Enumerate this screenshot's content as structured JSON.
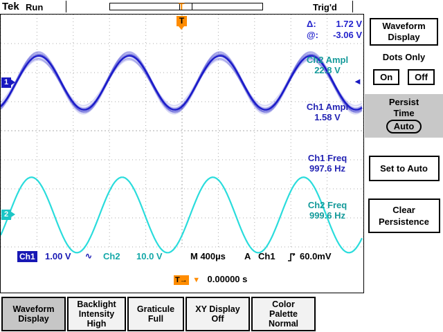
{
  "header": {
    "logo": "Tek",
    "acq_status": "Run",
    "trig_status": "Trig'd",
    "trigger_marker": "T"
  },
  "display": {
    "trigger_top_marker": "T",
    "ch1_marker": "1",
    "ch2_marker": "2",
    "trigger_level_marker": "◄"
  },
  "readouts": {
    "delta_label": "Δ:",
    "delta_value": "1.72 V",
    "at_label": "@:",
    "at_value": "-3.06 V",
    "ch2_ampl_label": "Ch2 Ampl",
    "ch2_ampl_value": "22.8 V",
    "ch1_ampl_label": "Ch1 Ampl",
    "ch1_ampl_value": "1.58 V",
    "ch1_freq_label": "Ch1 Freq",
    "ch1_freq_value": "997.6 Hz",
    "ch2_freq_label": "Ch2 Freq",
    "ch2_freq_value": "999.6 Hz"
  },
  "status_bar": {
    "ch1_label": "Ch1",
    "ch1_scale": "1.00 V",
    "ch1_coupling": "∿",
    "ch2_label": "Ch2",
    "ch2_scale": "10.0 V",
    "timebase": "M 400µs",
    "trig_mode": "A",
    "trig_source": "Ch1",
    "trig_level": "60.0mV",
    "trig_marker": "T→",
    "trig_arrow": "▼",
    "trig_position": "0.00000 s"
  },
  "side_menu": {
    "title_lines": [
      "Waveform",
      "Display"
    ],
    "dots_only_label": "Dots Only",
    "on_label": "On",
    "off_label": "Off",
    "persist_lines": [
      "Persist",
      "Time"
    ],
    "persist_value": "Auto",
    "set_to_auto_label": "Set to Auto",
    "clear_lines": [
      "Clear",
      "Persistence"
    ]
  },
  "bottom_menu": {
    "items": [
      {
        "lines": [
          "Waveform",
          "Display"
        ],
        "selected": true
      },
      {
        "lines": [
          "Backlight",
          "Intensity",
          "High"
        ],
        "selected": false
      },
      {
        "lines": [
          "Graticule",
          "Full"
        ],
        "selected": false
      },
      {
        "lines": [
          "XY Display",
          "Off"
        ],
        "selected": false
      },
      {
        "lines": [
          "Color",
          "Palette",
          "Normal"
        ],
        "selected": false
      }
    ]
  },
  "waveforms": {
    "ch1": {
      "name": "Ch1",
      "color": "#1616c8",
      "center_div": 2.35,
      "amplitude_div": 0.93,
      "period_div": 2.5,
      "peak_at_div": 1.05,
      "noisy": true
    },
    "ch2": {
      "name": "Ch2",
      "color": "#2adcdc",
      "center_div": 6.9,
      "amplitude_div": 1.3,
      "period_div": 2.5,
      "peak_at_div": 0.85,
      "noisy": false
    }
  },
  "colors": {
    "ch1_trace": "#1616c8",
    "ch2_trace": "#2adcdc",
    "ch1_text": "#1818b4",
    "ch2_text": "#14a8a8",
    "trigger_orange": "#ff8c00",
    "grid": "#aaaaaa",
    "menu_selected": "#c6c6c6"
  }
}
